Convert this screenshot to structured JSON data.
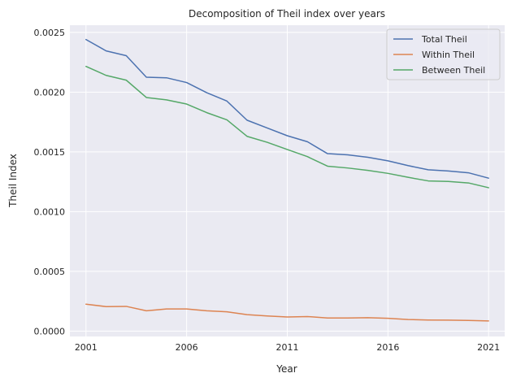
{
  "chart_data": {
    "type": "line",
    "title": "Decomposition of Theil index over years",
    "xlabel": "Year",
    "ylabel": "Theil Index",
    "xlim": [
      2000.2,
      2021.8
    ],
    "ylim": [
      -4.5e-05,
      0.00256
    ],
    "x_ticks": [
      2001,
      2006,
      2011,
      2016,
      2021
    ],
    "x_tick_labels": [
      "2001",
      "2006",
      "2011",
      "2016",
      "2021"
    ],
    "y_ticks": [
      0.0,
      0.0005,
      0.001,
      0.0015,
      0.002,
      0.0025
    ],
    "y_tick_labels": [
      "0.0000",
      "0.0005",
      "0.0010",
      "0.0015",
      "0.0020",
      "0.0025"
    ],
    "grid": true,
    "legend_position": "top-right",
    "x": [
      2001,
      2002,
      2003,
      2004,
      2005,
      2006,
      2007,
      2008,
      2009,
      2010,
      2011,
      2012,
      2013,
      2014,
      2015,
      2016,
      2017,
      2018,
      2019,
      2020,
      2021
    ],
    "series": [
      {
        "name": "Total Theil",
        "color": "#4c72b0",
        "values": [
          0.00244,
          0.002345,
          0.002305,
          0.002125,
          0.00212,
          0.00208,
          0.001995,
          0.001925,
          0.001765,
          0.0017,
          0.001635,
          0.001585,
          0.001485,
          0.001475,
          0.001455,
          0.001425,
          0.001385,
          0.00135,
          0.00134,
          0.001325,
          0.00128
        ]
      },
      {
        "name": "Within Theil",
        "color": "#dd8452",
        "values": [
          0.000225,
          0.000205,
          0.000207,
          0.00017,
          0.000185,
          0.000185,
          0.00017,
          0.000162,
          0.000138,
          0.000127,
          0.000118,
          0.000122,
          0.00011,
          0.00011,
          0.000112,
          0.000107,
          9.7e-05,
          9.3e-05,
          9.2e-05,
          8.9e-05,
          8.5e-05
        ]
      },
      {
        "name": "Between Theil",
        "color": "#55a868",
        "values": [
          0.002215,
          0.00214,
          0.0021,
          0.001955,
          0.001935,
          0.0019,
          0.001828,
          0.001768,
          0.00163,
          0.00158,
          0.00152,
          0.00146,
          0.00138,
          0.001365,
          0.001345,
          0.00132,
          0.001287,
          0.001257,
          0.001252,
          0.00124,
          0.0012
        ]
      }
    ]
  }
}
